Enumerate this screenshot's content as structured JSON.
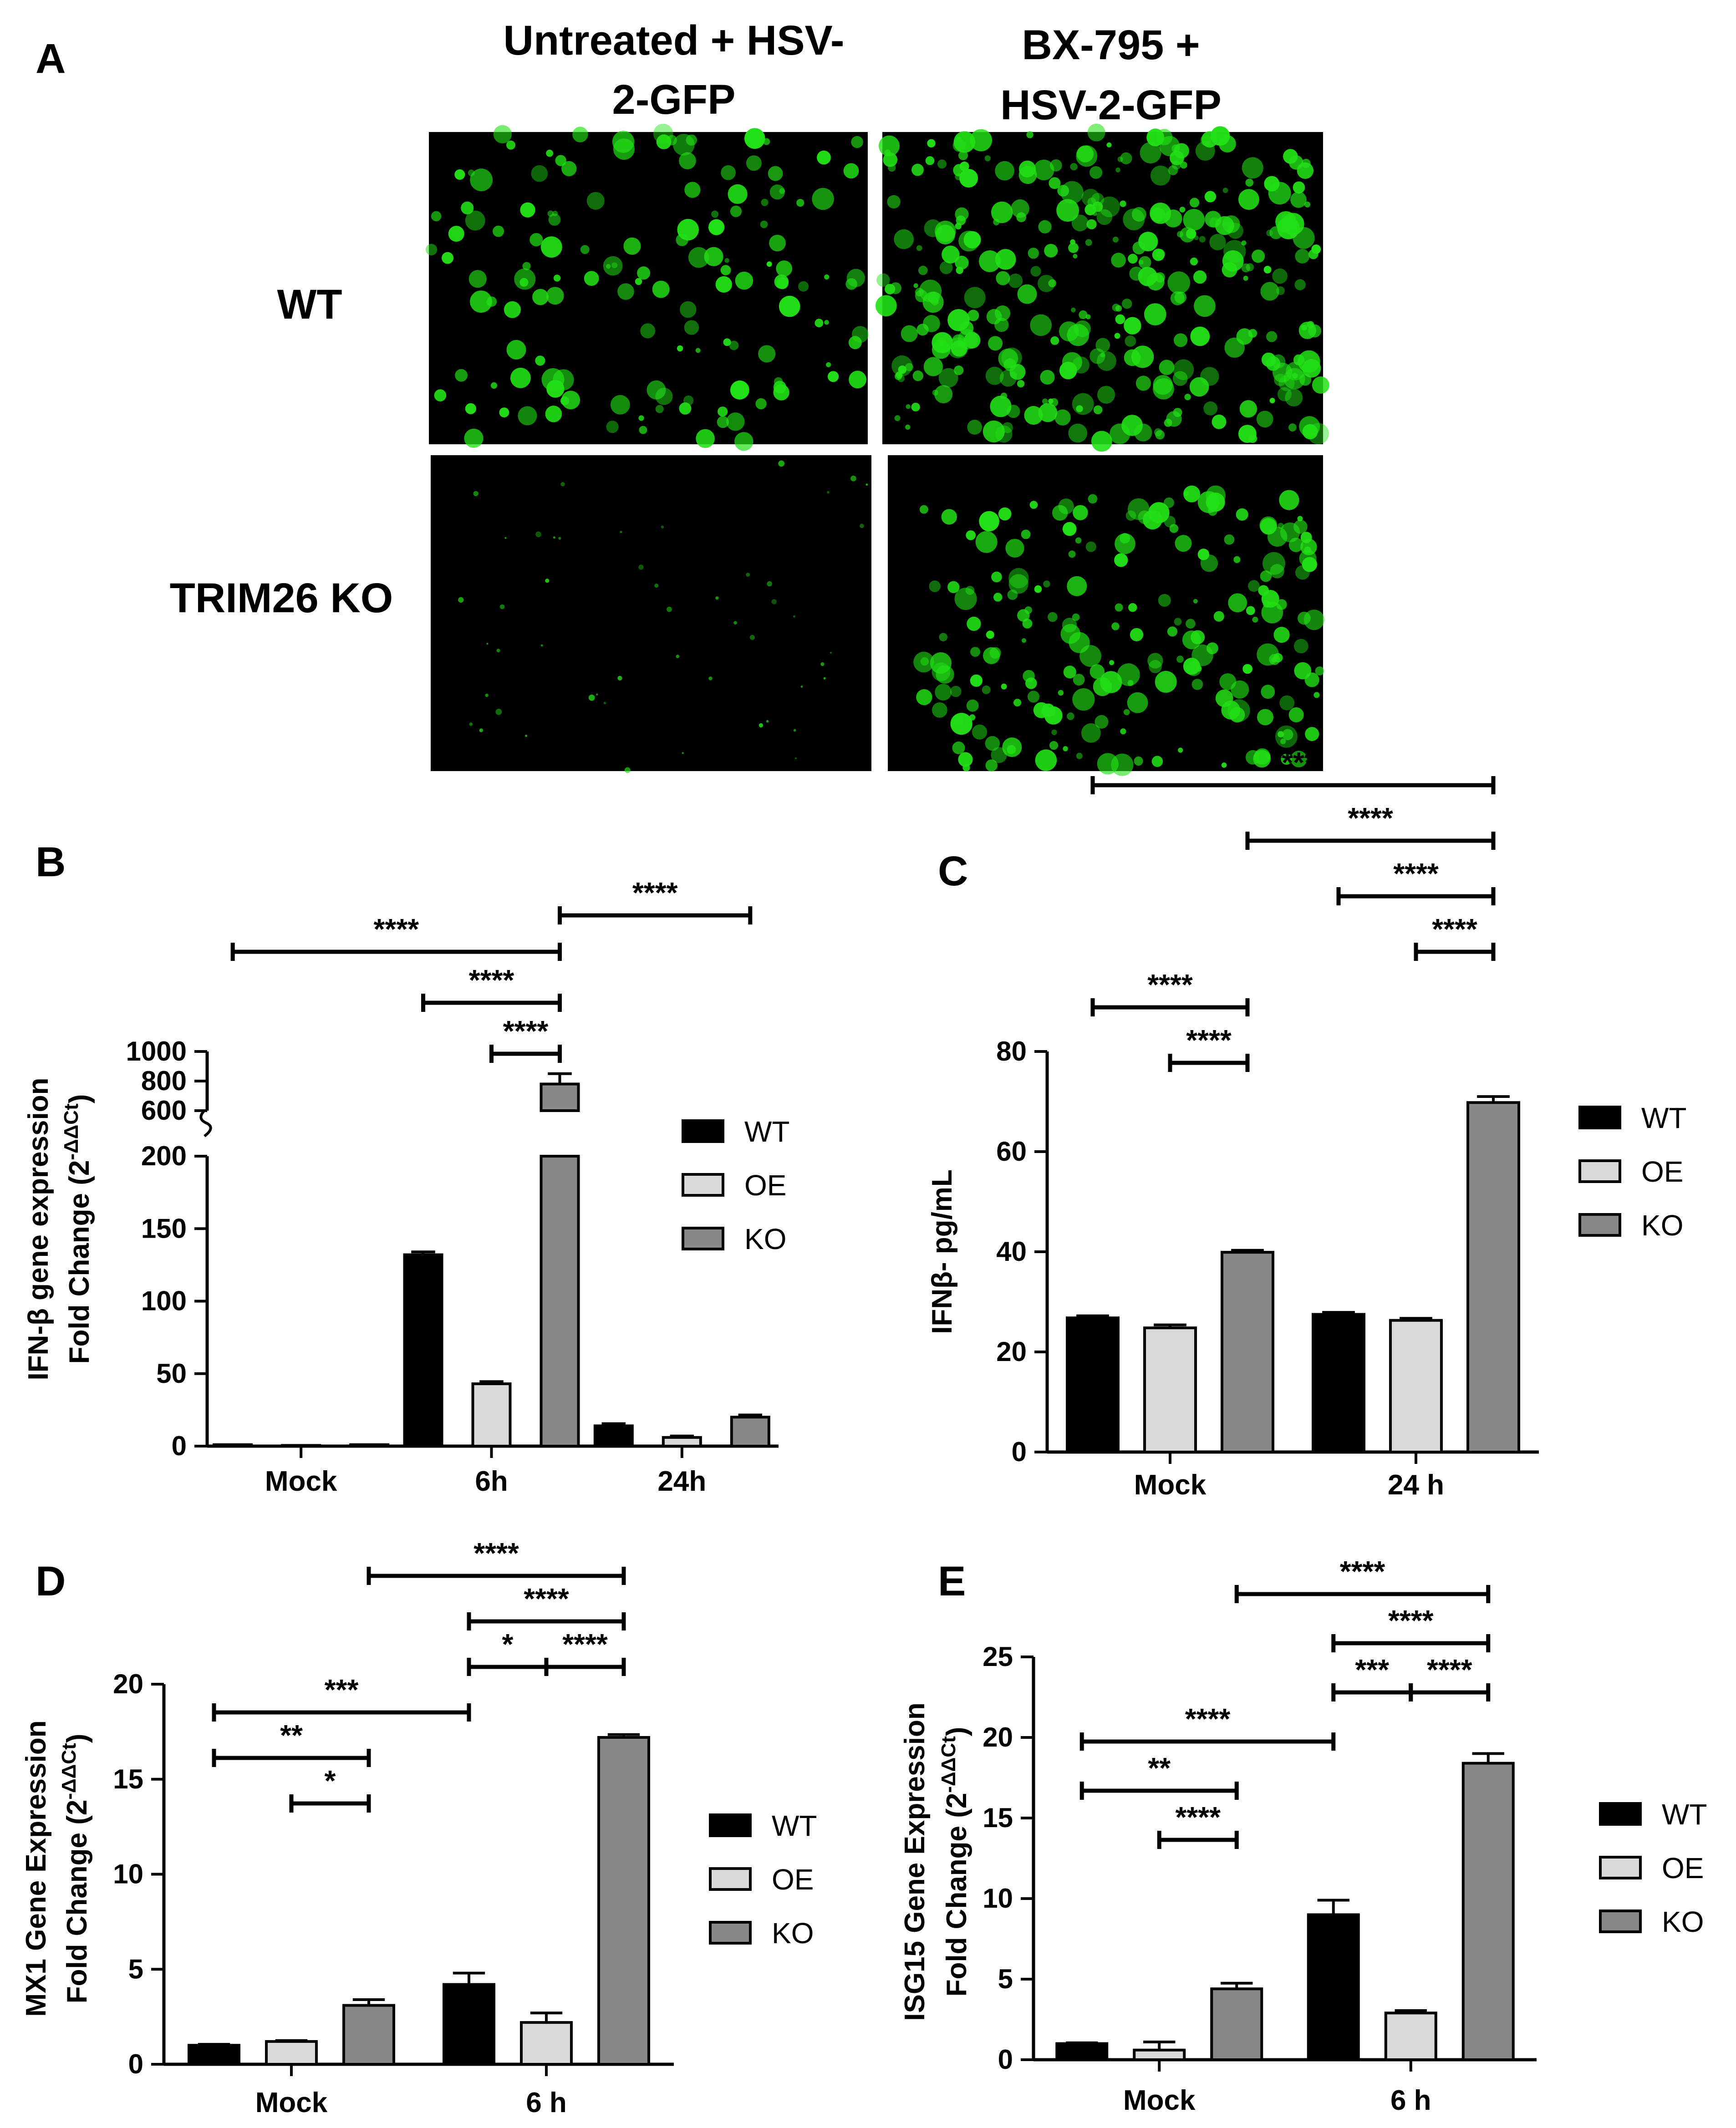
{
  "panel_letters": {
    "A": "A",
    "B": "B",
    "C": "C",
    "D": "D",
    "E": "E"
  },
  "panel_a": {
    "columns": [
      {
        "line1": "Untreated + HSV-",
        "line2": "2-GFP"
      },
      {
        "line1": "BX-795 +",
        "line2": "HSV-2-GFP"
      }
    ],
    "rows": [
      "WT",
      "TRIM26 KO"
    ],
    "colors": {
      "background": "#000000",
      "gfp": "#22e016"
    }
  },
  "legend": [
    "WT",
    "OE",
    "KO"
  ],
  "colors": {
    "WT": "#000000",
    "OE": "#d9d9d9",
    "KO": "#888888"
  },
  "chart_data": [
    {
      "panel": "B",
      "type": "bar",
      "categories": [
        "Mock",
        "6h",
        "24h"
      ],
      "ylabel": "IFN-β gene expression",
      "ylabel2": "Fold Change (2",
      "ylabel2_sup": "-ΔΔCt",
      "ylabel2_end": ")",
      "axis_break": true,
      "yticks_lower": [
        "0",
        "50",
        "100",
        "150",
        "200"
      ],
      "yticks_upper": [
        "600",
        "800",
        "1000"
      ],
      "ylim_lower": [
        0,
        200
      ],
      "ylim_upper": [
        600,
        1000
      ],
      "series": [
        {
          "name": "WT",
          "values": [
            1,
            132,
            14
          ],
          "errors": [
            0,
            2,
            1.5
          ]
        },
        {
          "name": "OE",
          "values": [
            0.5,
            43,
            6
          ],
          "errors": [
            0,
            1.5,
            1
          ]
        },
        {
          "name": "KO",
          "values": [
            1,
            780,
            20
          ],
          "errors": [
            0,
            70,
            1.5
          ]
        }
      ],
      "significance": [
        {
          "label": "****",
          "x1": [
            0,
            0
          ],
          "x2": [
            1,
            2
          ],
          "level": 2
        },
        {
          "label": "****",
          "x1": [
            1,
            0
          ],
          "x2": [
            1,
            2
          ],
          "level": 1
        },
        {
          "label": "****",
          "x1": [
            1,
            1
          ],
          "x2": [
            1,
            2
          ],
          "level": 0
        },
        {
          "label": "****",
          "x1": [
            1,
            2
          ],
          "x2": [
            2,
            2
          ],
          "level": 3
        }
      ]
    },
    {
      "panel": "C",
      "type": "bar",
      "categories": [
        "Mock",
        "24 h"
      ],
      "ylabel": "IFNβ- pg/mL",
      "ylim": [
        0,
        80
      ],
      "yticks": [
        "0",
        "20",
        "40",
        "60",
        "80"
      ],
      "series": [
        {
          "name": "WT",
          "values": [
            26.8,
            27.5
          ],
          "errors": [
            0.4,
            0.4
          ]
        },
        {
          "name": "OE",
          "values": [
            24.8,
            26.3
          ],
          "errors": [
            0.6,
            0.4
          ]
        },
        {
          "name": "KO",
          "values": [
            39.9,
            69.8
          ],
          "errors": [
            0.4,
            1.2
          ]
        }
      ],
      "significance": [
        {
          "label": "****",
          "x1": [
            0,
            0
          ],
          "x2": [
            0,
            2
          ],
          "level": 1
        },
        {
          "label": "****",
          "x1": [
            0,
            1
          ],
          "x2": [
            0,
            2
          ],
          "level": 0
        },
        {
          "label": "****",
          "x1": [
            0,
            0
          ],
          "x2": [
            1,
            2
          ],
          "level": 5
        },
        {
          "label": "****",
          "x1": [
            0,
            2
          ],
          "x2": [
            1,
            2
          ],
          "level": 4
        },
        {
          "label": "****",
          "x1": [
            1,
            0
          ],
          "x2": [
            1,
            2
          ],
          "level": 3
        },
        {
          "label": "****",
          "x1": [
            1,
            1
          ],
          "x2": [
            1,
            2
          ],
          "level": 2
        }
      ]
    },
    {
      "panel": "D",
      "type": "bar",
      "categories": [
        "Mock",
        "6 h"
      ],
      "ylabel": "MX1 Gene Expression",
      "ylabel2": "Fold Change (2",
      "ylabel2_sup": "-ΔΔCt",
      "ylabel2_end": ")",
      "ylim": [
        0,
        20
      ],
      "yticks": [
        "0",
        "5",
        "10",
        "15",
        "20"
      ],
      "series": [
        {
          "name": "WT",
          "values": [
            1.0,
            4.2
          ],
          "errors": [
            0.05,
            0.6
          ]
        },
        {
          "name": "OE",
          "values": [
            1.2,
            2.2
          ],
          "errors": [
            0.05,
            0.5
          ]
        },
        {
          "name": "KO",
          "values": [
            3.1,
            17.2
          ],
          "errors": [
            0.3,
            0.15
          ]
        }
      ],
      "significance": [
        {
          "label": "*",
          "x1": [
            0,
            1
          ],
          "x2": [
            0,
            2
          ],
          "level": 0
        },
        {
          "label": "**",
          "x1": [
            0,
            0
          ],
          "x2": [
            0,
            2
          ],
          "level": 1
        },
        {
          "label": "***",
          "x1": [
            0,
            0
          ],
          "x2": [
            1,
            0
          ],
          "level": 2
        },
        {
          "label": "*",
          "x1": [
            1,
            0
          ],
          "x2": [
            1,
            1
          ],
          "level": 3
        },
        {
          "label": "****",
          "x1": [
            1,
            1
          ],
          "x2": [
            1,
            2
          ],
          "level": 3
        },
        {
          "label": "****",
          "x1": [
            1,
            0
          ],
          "x2": [
            1,
            2
          ],
          "level": 4
        },
        {
          "label": "****",
          "x1": [
            0,
            2
          ],
          "x2": [
            1,
            2
          ],
          "level": 5
        }
      ]
    },
    {
      "panel": "E",
      "type": "bar",
      "categories": [
        "Mock",
        "6 h"
      ],
      "ylabel": "ISG15 Gene Expression",
      "ylabel2": "Fold Change (2",
      "ylabel2_sup": "-ΔΔCt",
      "ylabel2_end": ")",
      "ylim": [
        0,
        25
      ],
      "yticks": [
        "0",
        "5",
        "10",
        "15",
        "20",
        "25"
      ],
      "series": [
        {
          "name": "WT",
          "values": [
            1.0,
            9.0
          ],
          "errors": [
            0.05,
            0.9
          ]
        },
        {
          "name": "OE",
          "values": [
            0.6,
            2.9
          ],
          "errors": [
            0.5,
            0.15
          ]
        },
        {
          "name": "KO",
          "values": [
            4.4,
            18.4
          ],
          "errors": [
            0.35,
            0.6
          ]
        }
      ],
      "significance": [
        {
          "label": "****",
          "x1": [
            0,
            1
          ],
          "x2": [
            0,
            2
          ],
          "level": 0
        },
        {
          "label": "**",
          "x1": [
            0,
            0
          ],
          "x2": [
            0,
            2
          ],
          "level": 1
        },
        {
          "label": "****",
          "x1": [
            0,
            0
          ],
          "x2": [
            1,
            0
          ],
          "level": 2
        },
        {
          "label": "***",
          "x1": [
            1,
            0
          ],
          "x2": [
            1,
            1
          ],
          "level": 3
        },
        {
          "label": "****",
          "x1": [
            1,
            1
          ],
          "x2": [
            1,
            2
          ],
          "level": 3
        },
        {
          "label": "****",
          "x1": [
            1,
            0
          ],
          "x2": [
            1,
            2
          ],
          "level": 4
        },
        {
          "label": "****",
          "x1": [
            0,
            2
          ],
          "x2": [
            1,
            2
          ],
          "level": 5
        }
      ]
    }
  ]
}
